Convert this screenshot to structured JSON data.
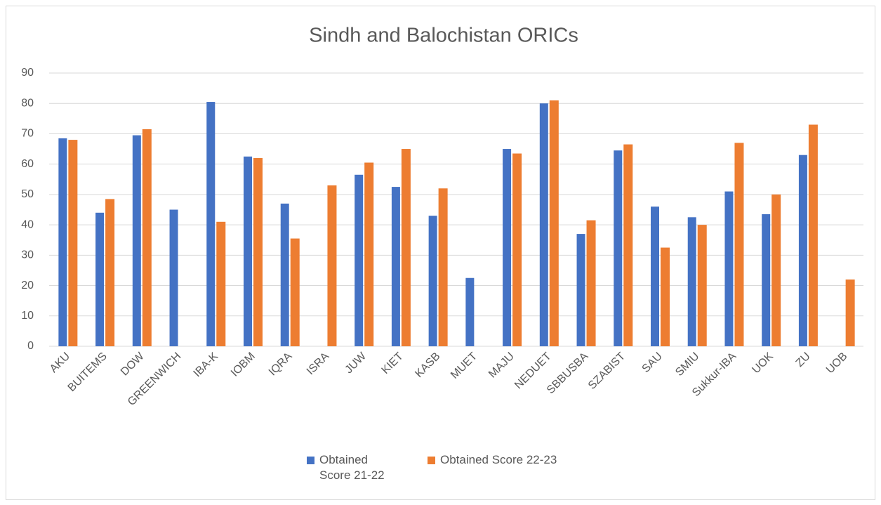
{
  "chart_data": {
    "type": "bar",
    "title": "Sindh and Balochistan ORICs",
    "categories": [
      "AKU",
      "BUITEMS",
      "DOW",
      "GREENWICH",
      "IBA-K",
      "IOBM",
      "IQRA",
      "ISRA",
      "JUW",
      "KIET",
      "KASB",
      "MUET",
      "MAJU",
      "NEDUET",
      "SBBUSBA",
      "SZABIST",
      "SAU",
      "SMIU",
      "Sukkur-IBA",
      "UOK",
      "ZU",
      "UOB"
    ],
    "series": [
      {
        "name": "Obtained Score 21-22",
        "color": "#4472c4",
        "values": [
          68.5,
          44,
          69.5,
          45,
          80.5,
          62.5,
          47,
          null,
          56.5,
          52.5,
          43,
          22.5,
          65,
          80,
          37,
          64.5,
          46,
          42.5,
          51,
          43.5,
          63,
          null
        ]
      },
      {
        "name": "Obtained Score 22-23",
        "color": "#ed7d31",
        "values": [
          68,
          48.5,
          71.5,
          null,
          41,
          62,
          35.5,
          53,
          60.5,
          65,
          52,
          null,
          63.5,
          81,
          41.5,
          66.5,
          32.5,
          40,
          67,
          50,
          73,
          22
        ]
      }
    ],
    "ylim": [
      0,
      90
    ],
    "yticks": [
      0,
      10,
      20,
      30,
      40,
      50,
      60,
      70,
      80,
      90
    ],
    "grid": true,
    "legend": "bottom"
  }
}
